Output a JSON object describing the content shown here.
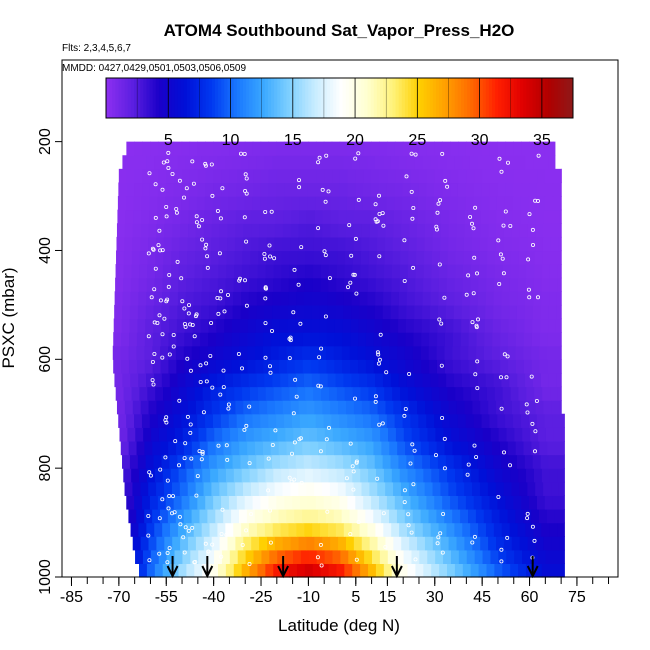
{
  "chart_data": {
    "type": "heatmap",
    "title": "ATOM4 Southbound Sat_Vapor_Press_H2O",
    "flights_note": "Flts: 2,3,4,5,6,7",
    "dates_note": "MMDD: 0427,0429,0501,0503,0506,0509",
    "xlabel": "Latitude (deg N)",
    "ylabel": "PSXC (mbar)",
    "xlim": [
      -88,
      88
    ],
    "ylim": [
      1000,
      50
    ],
    "x_ticks": [
      -85,
      -70,
      -55,
      -40,
      -25,
      -10,
      5,
      15,
      30,
      45,
      60,
      75
    ],
    "x_tick_labels": [
      "-85",
      "-70",
      "-55",
      "-40",
      "-25",
      "-10",
      "5",
      "15",
      "30",
      "45",
      "60",
      "75"
    ],
    "y_ticks": [
      200,
      400,
      600,
      800,
      1000
    ],
    "y_tick_labels": [
      "200",
      "400",
      "600",
      "800",
      "1000"
    ],
    "colorbar": {
      "range": [
        0,
        37.5
      ],
      "ticks": [
        5,
        10,
        15,
        20,
        25,
        30,
        35
      ],
      "tick_labels": [
        "5",
        "10",
        "15",
        "20",
        "25",
        "30",
        "35"
      ],
      "colors": [
        "#8b2ff0",
        "#5a1ee0",
        "#1a00c8",
        "#0010d8",
        "#0038f0",
        "#1a78ff",
        "#3aa8ff",
        "#7fd0ff",
        "#c8ecff",
        "#ffffff",
        "#ffffd0",
        "#fff27a",
        "#ffd000",
        "#ffa000",
        "#ff6a00",
        "#ff2000",
        "#e00000",
        "#b00000",
        "#8c1a1a"
      ]
    },
    "surface_levels_mbar": [
      1000,
      950,
      900,
      850,
      800,
      750,
      700,
      650,
      600,
      550,
      500,
      450,
      400,
      350,
      300,
      250,
      200
    ],
    "surface_values_by_level": [
      {
        "p": 1000,
        "values": [
          3,
          10,
          16,
          20,
          27,
          33,
          35,
          33,
          27,
          20,
          15,
          10,
          6
        ]
      },
      {
        "p": 950,
        "values": [
          3,
          9,
          14,
          18,
          24,
          28,
          30,
          28,
          23,
          18,
          13,
          8,
          5
        ]
      },
      {
        "p": 900,
        "values": [
          2,
          8,
          12,
          16,
          20,
          22,
          23,
          22,
          19,
          15,
          11,
          7,
          4
        ]
      },
      {
        "p": 850,
        "values": [
          2,
          7,
          10,
          14,
          17,
          19,
          20,
          19,
          16,
          13,
          9,
          6,
          3
        ]
      },
      {
        "p": 800,
        "values": [
          2,
          6,
          9,
          12,
          14,
          16,
          17,
          16,
          14,
          11,
          8,
          5,
          3
        ]
      },
      {
        "p": 750,
        "values": [
          1,
          5,
          7,
          10,
          12,
          13,
          14,
          13,
          12,
          9,
          6,
          4,
          2
        ]
      },
      {
        "p": 700,
        "values": [
          1,
          4,
          6,
          8,
          10,
          11,
          12,
          11,
          10,
          8,
          5,
          3,
          2
        ]
      },
      {
        "p": 650,
        "values": [
          1,
          3,
          5,
          7,
          8,
          9,
          10,
          9,
          8,
          6,
          4,
          3,
          1
        ]
      },
      {
        "p": 600,
        "values": [
          1,
          2,
          4,
          5,
          6,
          7,
          8,
          7,
          6,
          5,
          3,
          2,
          1
        ]
      },
      {
        "p": 550,
        "values": [
          0.5,
          2,
          3,
          4,
          5,
          6,
          6,
          6,
          5,
          4,
          3,
          1.5,
          0.5
        ]
      },
      {
        "p": 500,
        "values": [
          0.5,
          1.5,
          2.5,
          3,
          4,
          4.5,
          5,
          4.5,
          4,
          3,
          2,
          1,
          0.5
        ]
      },
      {
        "p": 450,
        "values": [
          0.3,
          1,
          2,
          2.5,
          3,
          3.5,
          4,
          3.5,
          3,
          2.5,
          1.5,
          0.8,
          0.3
        ]
      },
      {
        "p": 400,
        "values": [
          0.2,
          0.8,
          1.5,
          2,
          2.5,
          3,
          3,
          3,
          2.5,
          2,
          1,
          0.5,
          0.2
        ]
      },
      {
        "p": 350,
        "values": [
          0.1,
          0.5,
          1,
          1.5,
          2,
          2,
          2.5,
          2,
          2,
          1.5,
          0.8,
          0.3,
          0.1
        ]
      },
      {
        "p": 300,
        "values": [
          0.1,
          0.3,
          0.6,
          1,
          1.2,
          1.5,
          1.5,
          1.5,
          1.2,
          1,
          0.5,
          0.2,
          0.1
        ]
      },
      {
        "p": 250,
        "values": [
          0.05,
          0.2,
          0.4,
          0.6,
          0.8,
          1,
          1,
          1,
          0.8,
          0.6,
          0.3,
          0.1,
          0.05
        ]
      },
      {
        "p": 200,
        "values": [
          0.02,
          0.1,
          0.2,
          0.3,
          0.4,
          0.5,
          0.5,
          0.5,
          0.4,
          0.3,
          0.15,
          0.05,
          0.02
        ]
      }
    ],
    "surface_latitudes": [
      -70,
      -60,
      -50,
      -40,
      -30,
      -20,
      -10,
      0,
      10,
      20,
      35,
      50,
      65
    ],
    "arrow_latitudes": [
      -53,
      -42,
      -18,
      18,
      61
    ]
  }
}
